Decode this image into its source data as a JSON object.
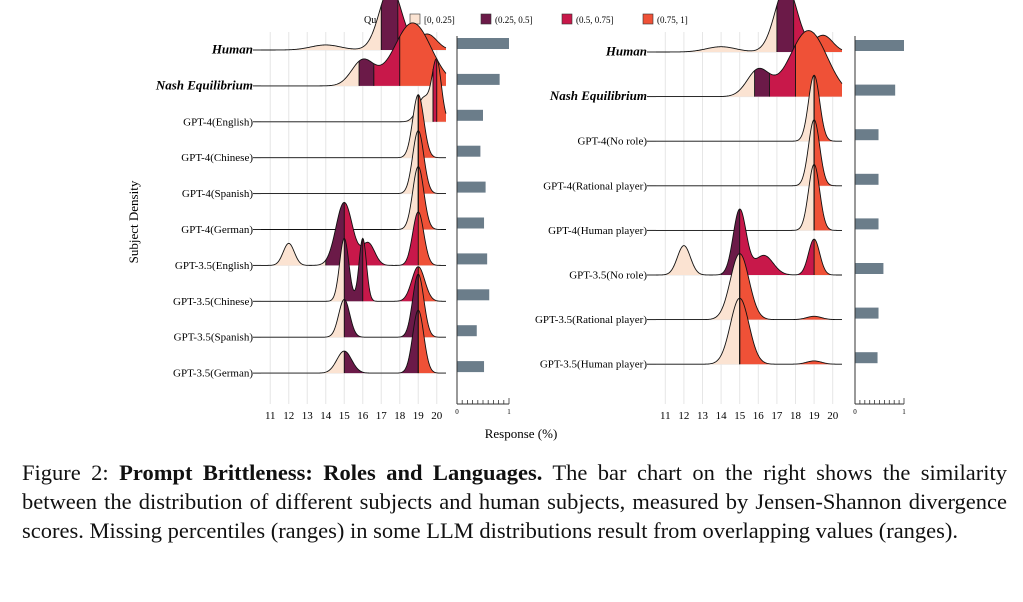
{
  "legend": {
    "title": "Quantile",
    "items": [
      {
        "label": "[0, 0.25]",
        "color": "#fbe3d2"
      },
      {
        "label": "(0.25, 0.5]",
        "color": "#6b1a48"
      },
      {
        "label": "(0.5, 0.75]",
        "color": "#c8184a"
      },
      {
        "label": "(0.75, 1]",
        "color": "#ef5137"
      }
    ]
  },
  "colors": {
    "bar": "#6b7d8a",
    "grid": "#e6e6e6",
    "outline": "#111111"
  },
  "axis": {
    "ylabel": "Subject Density",
    "xlabel": "Response (%)"
  },
  "caption": {
    "label": "Figure 2:",
    "title": "Prompt Brittleness: Roles and Languages.",
    "text": "The bar chart on the right shows the similarity between the distribution of different subjects and human subjects, measured by Jensen-Shannon divergence scores. Missing percentiles (ranges) in some LLM distributions result from overlapping values (ranges)."
  },
  "chart_data": [
    {
      "type": "ridgeline",
      "title": "",
      "xlabel": "Response (%)",
      "ylabel": "Subject Density",
      "xlim": [
        10.5,
        20.5
      ],
      "xticks": [
        11,
        12,
        13,
        14,
        15,
        16,
        17,
        18,
        19,
        20
      ],
      "grid": true,
      "legend": "top",
      "series": [
        {
          "name": "Human",
          "bold": true,
          "comps": [
            [
              17.5,
              0.6,
              1.0
            ],
            [
              14.0,
              0.8,
              0.08
            ],
            [
              19.5,
              0.5,
              0.25
            ]
          ],
          "quantiles": [
            17.0,
            17.9,
            19.0
          ],
          "js": 1.0
        },
        {
          "name": "Nash Equilibrium",
          "bold": true,
          "comps": [
            [
              18.7,
              1.0,
              1.0
            ],
            [
              16.0,
              0.6,
              0.4
            ]
          ],
          "quantiles": [
            15.8,
            16.6,
            18.0
          ],
          "js": 0.82
        },
        {
          "name": "GPT-4(English)",
          "comps": [
            [
              20.0,
              0.25,
              1.0
            ],
            [
              19.3,
              0.35,
              0.4
            ]
          ],
          "quantiles": [
            19.8,
            19.8,
            20.0
          ],
          "js": 0.5
        },
        {
          "name": "GPT-4(Chinese)",
          "comps": [
            [
              19.0,
              0.3,
              1.0
            ]
          ],
          "quantiles": [
            19.0,
            19.0,
            19.0
          ],
          "js": 0.45
        },
        {
          "name": "GPT-4(Spanish)",
          "comps": [
            [
              19.0,
              0.3,
              1.0
            ]
          ],
          "quantiles": [
            19.0,
            19.0,
            19.0
          ],
          "js": 0.55
        },
        {
          "name": "GPT-4(German)",
          "comps": [
            [
              19.0,
              0.3,
              1.0
            ]
          ],
          "quantiles": [
            19.0,
            19.0,
            19.0
          ],
          "js": 0.52
        },
        {
          "name": "GPT-3.5(English)",
          "comps": [
            [
              12.0,
              0.3,
              0.35
            ],
            [
              15.0,
              0.45,
              1.0
            ],
            [
              16.3,
              0.35,
              0.35
            ],
            [
              19.0,
              0.3,
              0.85
            ]
          ],
          "quantiles": [
            14.0,
            15.0,
            19.0
          ],
          "js": 0.58
        },
        {
          "name": "GPT-3.5(Chinese)",
          "comps": [
            [
              15.0,
              0.25,
              1.0
            ],
            [
              16.0,
              0.2,
              1.0
            ],
            [
              19.0,
              0.35,
              0.55
            ]
          ],
          "quantiles": [
            15.0,
            16.0,
            19.0
          ],
          "js": 0.62
        },
        {
          "name": "GPT-3.5(Spanish)",
          "comps": [
            [
              15.0,
              0.3,
              0.6
            ],
            [
              19.0,
              0.3,
              1.0
            ]
          ],
          "quantiles": [
            15.0,
            19.0,
            19.0
          ],
          "js": 0.38
        },
        {
          "name": "GPT-3.5(German)",
          "comps": [
            [
              15.0,
              0.4,
              0.35
            ],
            [
              19.0,
              0.3,
              1.0
            ]
          ],
          "quantiles": [
            15.0,
            19.0,
            19.0
          ],
          "js": 0.52
        }
      ],
      "bar_xticks": [
        0,
        1
      ]
    },
    {
      "type": "ridgeline",
      "title": "",
      "xlabel": "",
      "ylabel": "",
      "xlim": [
        10.5,
        20.5
      ],
      "xticks": [
        11,
        12,
        13,
        14,
        15,
        16,
        17,
        18,
        19,
        20
      ],
      "grid": true,
      "series": [
        {
          "name": "Human",
          "bold": true,
          "comps": [
            [
              17.5,
              0.6,
              1.0
            ],
            [
              14.0,
              0.8,
              0.08
            ],
            [
              19.5,
              0.5,
              0.25
            ]
          ],
          "quantiles": [
            17.0,
            17.9,
            19.0
          ],
          "js": 1.0
        },
        {
          "name": "Nash Equilibrium",
          "bold": true,
          "comps": [
            [
              18.7,
              1.0,
              1.0
            ],
            [
              16.0,
              0.6,
              0.4
            ]
          ],
          "quantiles": [
            15.8,
            16.6,
            18.0
          ],
          "js": 0.82
        },
        {
          "name": "GPT-4(No role)",
          "comps": [
            [
              19.0,
              0.3,
              1.0
            ]
          ],
          "quantiles": [
            19.0,
            19.0,
            19.0
          ],
          "js": 0.48
        },
        {
          "name": "GPT-4(Rational player)",
          "comps": [
            [
              19.0,
              0.3,
              1.0
            ]
          ],
          "quantiles": [
            19.0,
            19.0,
            19.0
          ],
          "js": 0.48
        },
        {
          "name": "GPT-4(Human player)",
          "comps": [
            [
              19.0,
              0.3,
              1.0
            ]
          ],
          "quantiles": [
            19.0,
            19.0,
            19.0
          ],
          "js": 0.48
        },
        {
          "name": "GPT-3.5(No role)",
          "comps": [
            [
              12.0,
              0.35,
              0.45
            ],
            [
              15.0,
              0.35,
              1.0
            ],
            [
              16.3,
              0.5,
              0.3
            ],
            [
              19.0,
              0.3,
              0.55
            ]
          ],
          "quantiles": [
            14.0,
            15.0,
            19.0
          ],
          "js": 0.58
        },
        {
          "name": "GPT-3.5(Rational player)",
          "comps": [
            [
              15.0,
              0.5,
              1.0
            ],
            [
              19.0,
              0.4,
              0.05
            ]
          ],
          "quantiles": [
            15.0,
            15.0,
            15.0
          ],
          "js": 0.48
        },
        {
          "name": "GPT-3.5(Human player)",
          "comps": [
            [
              15.0,
              0.5,
              1.0
            ],
            [
              19.0,
              0.4,
              0.05
            ]
          ],
          "quantiles": [
            15.0,
            15.0,
            15.0
          ],
          "js": 0.46
        }
      ],
      "bar_xticks": [
        0,
        1
      ]
    }
  ]
}
